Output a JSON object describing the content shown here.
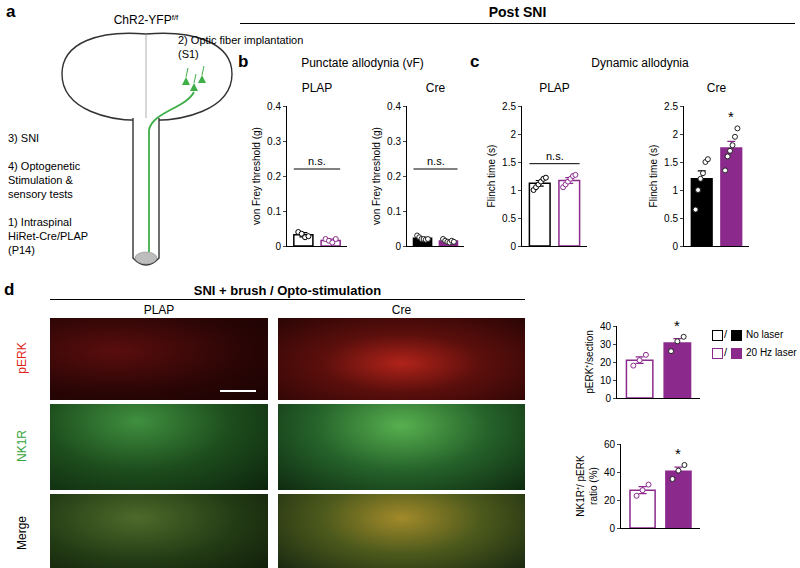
{
  "header": {
    "text": "Post SNI"
  },
  "panel_a": {
    "label": "a",
    "mouse": {
      "text": "ChR2-YFP",
      "sup": "f/f"
    },
    "fiber": [
      "2) Optic fiber implantation",
      "(S1)"
    ],
    "sni": [
      "3) SNI"
    ],
    "stim": [
      "4) Optogenetic",
      "Stimulation &",
      "sensory tests"
    ],
    "virus": [
      "1)  Intraspinal",
      "HiRet-Cre/PLAP",
      "(P14)"
    ]
  },
  "panel_b": {
    "label": "b",
    "title": "Punctate allodynia (vF)"
  },
  "panel_c": {
    "label": "c",
    "title": "Dynamic allodynia"
  },
  "panel_d": {
    "label": "d",
    "title": "SNI + brush / Opto-stimulation",
    "columns": [
      "PLAP",
      "Cre"
    ],
    "rows": [
      {
        "text": "pERK",
        "color": "#e0261c"
      },
      {
        "text": "NK1R",
        "color": "#35a33a"
      },
      {
        "text": "Merge",
        "color": "#000000"
      }
    ]
  },
  "legend_key": {
    "separator": "/",
    "entries": [
      {
        "label": "No laser",
        "color": "#000000"
      },
      {
        "label": "20 Hz laser",
        "color": "#8b2a8c"
      }
    ]
  },
  "chart_data": [
    {
      "type": "bar",
      "title": "PLAP",
      "ylabel": "von Frey threshold (g)",
      "ylim": [
        0,
        0.4
      ],
      "yticks": [
        0,
        0.1,
        0.2,
        0.3,
        0.4
      ],
      "grid": false,
      "tick_labels": "y",
      "series": [
        {
          "color": "#000000",
          "marker": "open",
          "values": [
            0.032
          ],
          "errors": [
            0.006
          ],
          "points": [
            0.04,
            0.035,
            0.025,
            0.028
          ]
        },
        {
          "color": "#8b2a8c",
          "marker": "open",
          "values": [
            0.016
          ],
          "errors": [
            0.004
          ],
          "points": [
            0.02,
            0.015,
            0.01,
            0.02
          ]
        }
      ],
      "annotations": [
        {
          "text": "n.s.",
          "over": [
            0,
            1
          ]
        }
      ]
    },
    {
      "type": "bar",
      "title": "Cre",
      "ylabel": "von Frey threshold (g)",
      "ylim": [
        0,
        0.4
      ],
      "yticks": [
        0,
        0.1,
        0.2,
        0.3,
        0.4
      ],
      "grid": false,
      "tick_labels": "y",
      "series": [
        {
          "color": "#000000",
          "marker": "filled",
          "values": [
            0.022
          ],
          "errors": [
            0.003
          ],
          "points": [
            0.03,
            0.025,
            0.02,
            0.02,
            0.018,
            0.02
          ]
        },
        {
          "color": "#8b2a8c",
          "marker": "filled",
          "values": [
            0.014
          ],
          "errors": [
            0.002
          ],
          "points": [
            0.02,
            0.015,
            0.012,
            0.01,
            0.015,
            0.012
          ]
        }
      ],
      "annotations": [
        {
          "text": "n.s.",
          "over": [
            0,
            1
          ]
        }
      ]
    },
    {
      "type": "bar",
      "title": "PLAP",
      "ylabel": "Flinch time (s)",
      "ylim": [
        0,
        2.5
      ],
      "yticks": [
        0,
        0.5,
        1,
        1.5,
        2,
        2.5
      ],
      "grid": false,
      "tick_labels": "y",
      "series": [
        {
          "color": "#000000",
          "marker": "open",
          "values": [
            1.12
          ],
          "errors": [
            0.05
          ],
          "points": [
            1.0,
            1.05,
            1.1,
            1.15,
            1.2,
            1.22
          ]
        },
        {
          "color": "#8b2a8c",
          "marker": "open",
          "values": [
            1.17
          ],
          "errors": [
            0.05
          ],
          "points": [
            1.05,
            1.1,
            1.15,
            1.2,
            1.25,
            1.27
          ]
        }
      ],
      "annotations": [
        {
          "text": "n.s.",
          "over": [
            0,
            1
          ]
        }
      ]
    },
    {
      "type": "bar",
      "title": "Cre",
      "ylabel": "Flinch time (s)",
      "ylim": [
        0,
        2.5
      ],
      "yticks": [
        0,
        0.5,
        1,
        1.5,
        2,
        2.5
      ],
      "grid": false,
      "tick_labels": "y",
      "series": [
        {
          "color": "#000000",
          "marker": "filled",
          "values": [
            1.2
          ],
          "errors": [
            0.14
          ],
          "points": [
            0.65,
            1.0,
            1.2,
            1.3,
            1.5,
            1.55
          ]
        },
        {
          "color": "#8b2a8c",
          "marker": "filled",
          "values": [
            1.75
          ],
          "errors": [
            0.12
          ],
          "points": [
            1.35,
            1.6,
            1.7,
            1.8,
            1.95,
            2.1
          ]
        }
      ],
      "annotations": [
        {
          "text": "*",
          "over": [
            1
          ]
        }
      ]
    },
    {
      "type": "bar",
      "ylabel": "pERK⁺/section",
      "ylim": [
        0,
        40
      ],
      "yticks": [
        0,
        10,
        20,
        30,
        40
      ],
      "grid": false,
      "tick_labels": "y",
      "series": [
        {
          "color": "#8b2a8c",
          "marker": "open",
          "values": [
            21
          ],
          "errors": [
            1.8
          ],
          "points": [
            18,
            21,
            24
          ]
        },
        {
          "color": "#8b2a8c",
          "marker": "filled",
          "values": [
            30.5
          ],
          "errors": [
            2.5
          ],
          "points": [
            26,
            31.5,
            34
          ]
        }
      ],
      "annotations": [
        {
          "text": "*",
          "over": [
            1
          ]
        }
      ]
    },
    {
      "type": "bar",
      "ylabel": [
        "NK1R⁺/ pERK",
        "ratio (%)"
      ],
      "ylim": [
        0,
        60
      ],
      "yticks": [
        0,
        20,
        40,
        60
      ],
      "grid": false,
      "tick_labels": "y",
      "series": [
        {
          "color": "#8b2a8c",
          "marker": "open",
          "values": [
            27
          ],
          "errors": [
            2.5
          ],
          "points": [
            23,
            27,
            31
          ]
        },
        {
          "color": "#8b2a8c",
          "marker": "filled",
          "values": [
            40.5
          ],
          "errors": [
            3
          ],
          "points": [
            35,
            41,
            45
          ]
        }
      ],
      "annotations": [
        {
          "text": "*",
          "over": [
            1
          ]
        }
      ]
    }
  ]
}
